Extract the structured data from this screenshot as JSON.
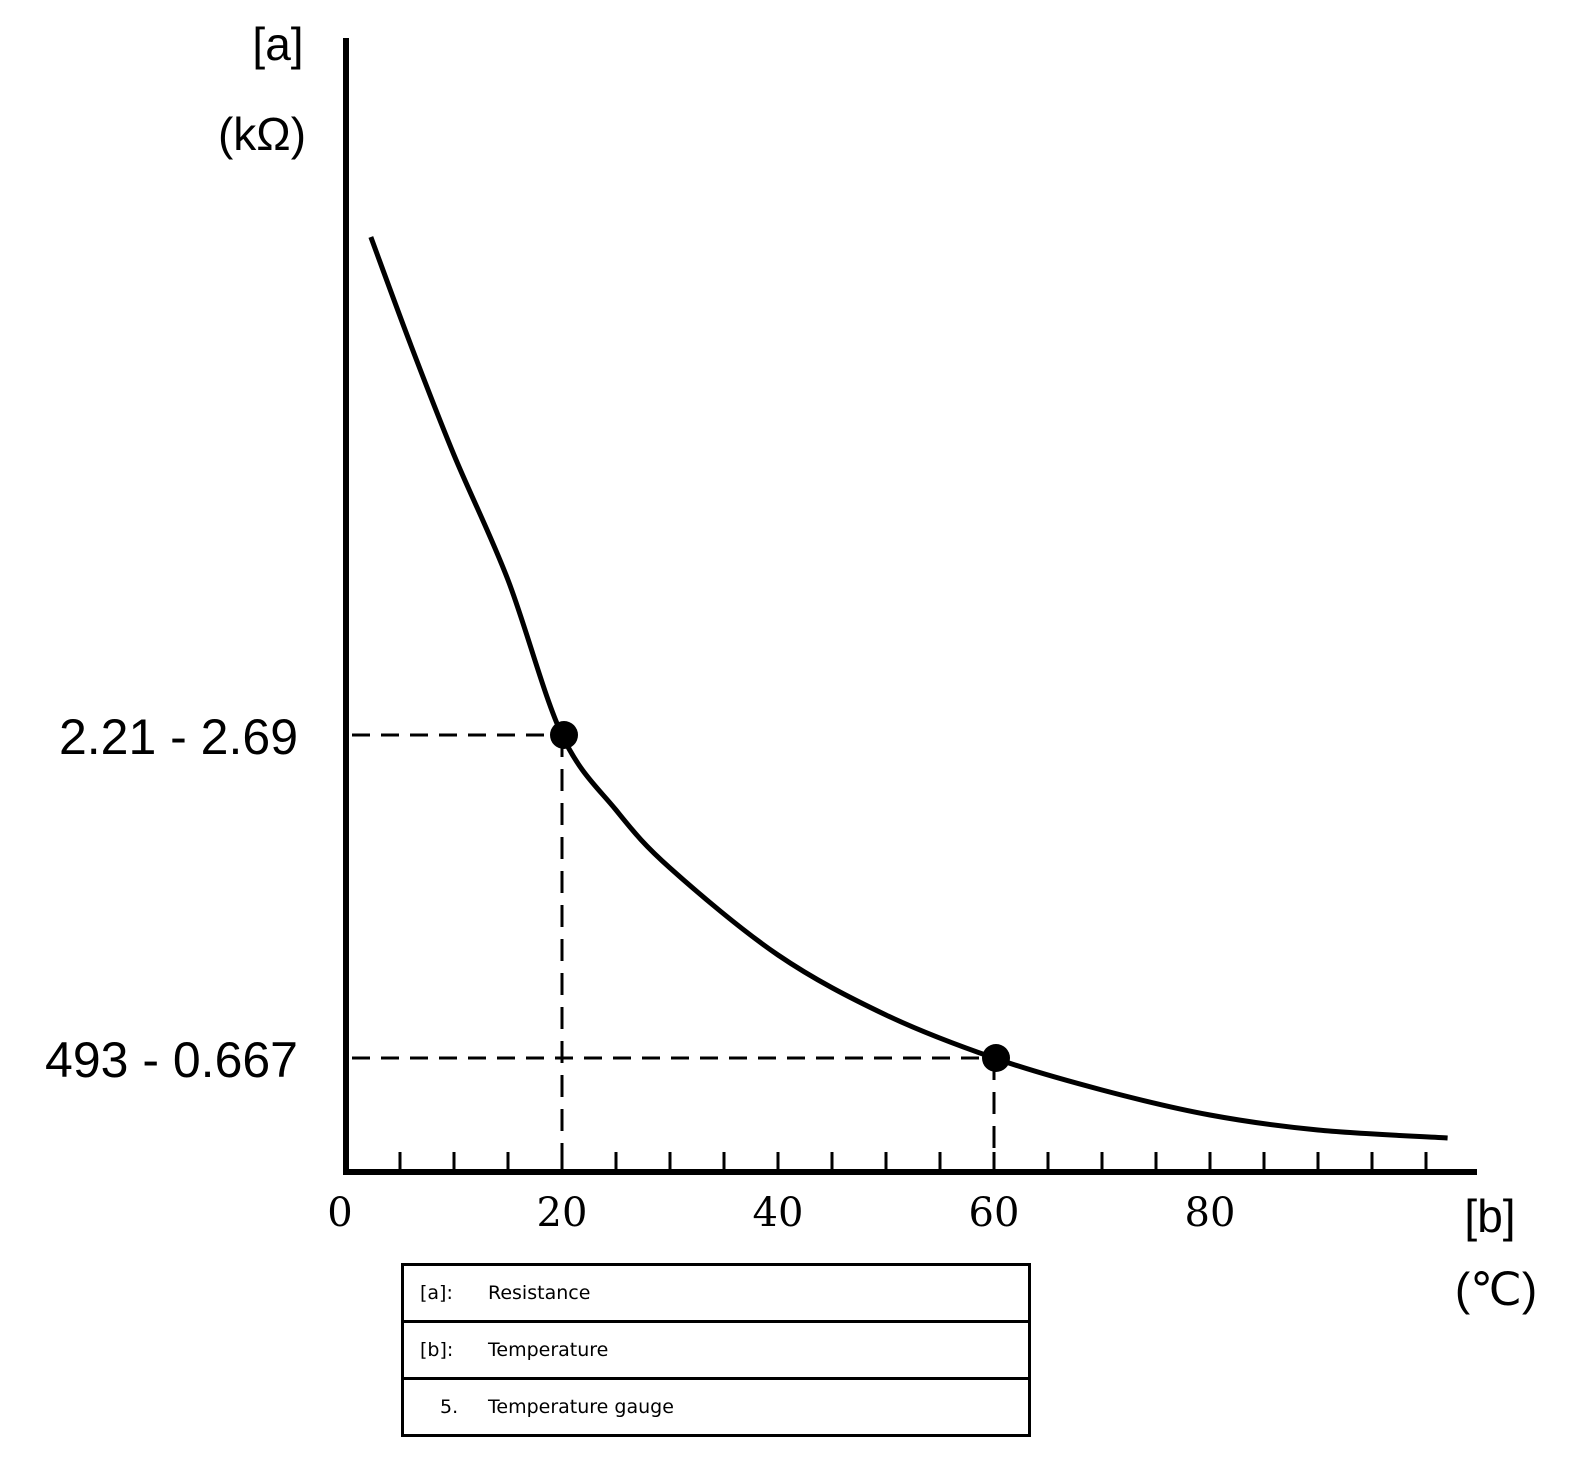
{
  "chart_data": {
    "type": "line",
    "title": "",
    "ylabel": "[a]",
    "yunit": "(kΩ)",
    "xlabel": "[b]",
    "xunit": "(℃)",
    "xlim": [
      0,
      105
    ],
    "x_ticks": [
      0,
      20,
      40,
      60,
      80
    ],
    "x_minor_tick_step": 5,
    "grid": false,
    "line_color": "#000000",
    "curve": "decreasing exponential-like resistance vs temperature",
    "markers": [
      {
        "x": 20,
        "label": "2.21 - 2.69"
      },
      {
        "x": 60,
        "label": "493 - 0.667"
      }
    ]
  },
  "legend": [
    {
      "key": "[a]:",
      "value": "Resistance"
    },
    {
      "key": "[b]:",
      "value": "Temperature"
    },
    {
      "key": "5.",
      "value": "Temperature gauge"
    }
  ]
}
